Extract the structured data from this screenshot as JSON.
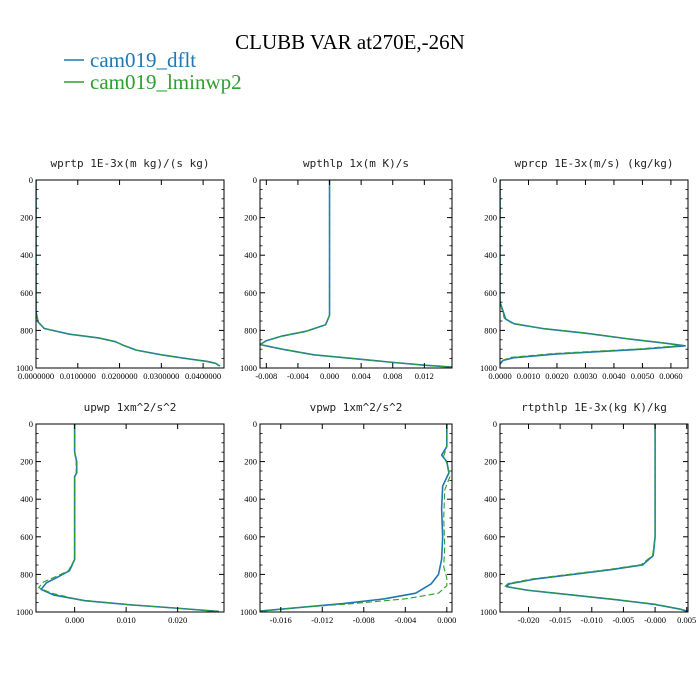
{
  "figure": {
    "title": "CLUBB VAR at270E,-26N",
    "colors": {
      "dflt": "#1f77b4",
      "lminwp2": "#2ca02c"
    }
  },
  "legend": {
    "items": [
      {
        "label": "cam019_dflt",
        "color": "#1f77b4",
        "style": "solid"
      },
      {
        "label": "cam019_lminwp2",
        "color": "#2ca02c",
        "style": "dashed"
      }
    ]
  },
  "chart_data": [
    {
      "type": "line",
      "title": "wprtp  1E-3x(m kg)/(s kg)",
      "xlim": [
        0,
        0.045
      ],
      "ylim": [
        0,
        1000
      ],
      "y_inverted": true,
      "xticks": [
        0,
        0.01,
        0.02,
        0.03,
        0.04
      ],
      "xtick_labels": [
        "0.0000000",
        "0.0100000",
        "0.0200000",
        "0.0300000",
        "0.0400000"
      ],
      "yticks": [
        0,
        200,
        400,
        600,
        800,
        1000
      ],
      "ytick_labels": [
        "0",
        "200",
        "400",
        "600",
        "800",
        "1000"
      ],
      "series": [
        {
          "name": "cam019_dflt",
          "points": [
            [
              0,
              0
            ],
            [
              0,
              500
            ],
            [
              0,
              700
            ],
            [
              0.0005,
              755
            ],
            [
              0.002,
              790
            ],
            [
              0.008,
              820
            ],
            [
              0.015,
              840
            ],
            [
              0.019,
              860
            ],
            [
              0.021,
              880
            ],
            [
              0.024,
              905
            ],
            [
              0.03,
              930
            ],
            [
              0.036,
              950
            ],
            [
              0.041,
              965
            ],
            [
              0.043,
              975
            ],
            [
              0.044,
              990
            ]
          ]
        },
        {
          "name": "cam019_lminwp2",
          "points": [
            [
              0,
              0
            ],
            [
              0,
              500
            ],
            [
              0,
              700
            ],
            [
              0.0005,
              755
            ],
            [
              0.002,
              790
            ],
            [
              0.008,
              820
            ],
            [
              0.015,
              840
            ],
            [
              0.019,
              860
            ],
            [
              0.021,
              880
            ],
            [
              0.024,
              905
            ],
            [
              0.03,
              930
            ],
            [
              0.036,
              950
            ],
            [
              0.041,
              965
            ],
            [
              0.043,
              975
            ],
            [
              0.044,
              990
            ]
          ]
        }
      ]
    },
    {
      "type": "line",
      "title": "wpthlp  1x(m K)/s",
      "xlim": [
        -0.0088,
        0.0155
      ],
      "ylim": [
        0,
        1000
      ],
      "y_inverted": true,
      "xticks": [
        -0.008,
        -0.004,
        0,
        0.004,
        0.008,
        0.012
      ],
      "xtick_labels": [
        "-0.008",
        "-0.004",
        "0.000",
        "0.004",
        "0.008",
        "0.012"
      ],
      "yticks": [
        0,
        200,
        400,
        600,
        800,
        1000
      ],
      "ytick_labels": [
        "0",
        "200",
        "400",
        "600",
        "800",
        "1000"
      ],
      "series": [
        {
          "name": "cam019_dflt",
          "points": [
            [
              0,
              0
            ],
            [
              0,
              300
            ],
            [
              0,
              600
            ],
            [
              0,
              720
            ],
            [
              -0.0005,
              770
            ],
            [
              -0.003,
              805
            ],
            [
              -0.006,
              830
            ],
            [
              -0.008,
              855
            ],
            [
              -0.0088,
              875
            ],
            [
              -0.006,
              900
            ],
            [
              -0.002,
              930
            ],
            [
              0.003,
              950
            ],
            [
              0.008,
              970
            ],
            [
              0.012,
              985
            ],
            [
              0.0155,
              995
            ]
          ]
        },
        {
          "name": "cam019_lminwp2",
          "points": [
            [
              0,
              0
            ],
            [
              0,
              300
            ],
            [
              0,
              600
            ],
            [
              0,
              720
            ],
            [
              -0.0005,
              770
            ],
            [
              -0.003,
              805
            ],
            [
              -0.006,
              830
            ],
            [
              -0.008,
              855
            ],
            [
              -0.0088,
              875
            ],
            [
              -0.006,
              900
            ],
            [
              -0.002,
              930
            ],
            [
              0.003,
              950
            ],
            [
              0.008,
              970
            ],
            [
              0.012,
              985
            ],
            [
              0.0155,
              995
            ]
          ]
        }
      ]
    },
    {
      "type": "line",
      "title": "wprcp  1E-3x(m/s) (kg/kg)",
      "xlim": [
        0,
        0.0066
      ],
      "ylim": [
        0,
        1000
      ],
      "y_inverted": true,
      "xticks": [
        0,
        0.001,
        0.002,
        0.003,
        0.004,
        0.005,
        0.006
      ],
      "xtick_labels": [
        "0.0000",
        "0.0010",
        "0.0020",
        "0.0030",
        "0.0040",
        "0.0050",
        "0.0060"
      ],
      "yticks": [
        0,
        200,
        400,
        600,
        800,
        1000
      ],
      "ytick_labels": [
        "0",
        "200",
        "400",
        "600",
        "800",
        "1000"
      ],
      "series": [
        {
          "name": "cam019_dflt",
          "points": [
            [
              0,
              0
            ],
            [
              0,
              500
            ],
            [
              0,
              650
            ],
            [
              0.0002,
              740
            ],
            [
              0.0005,
              765
            ],
            [
              0.0015,
              790
            ],
            [
              0.003,
              815
            ],
            [
              0.0045,
              845
            ],
            [
              0.0058,
              868
            ],
            [
              0.0065,
              882
            ],
            [
              0.005,
              900
            ],
            [
              0.002,
              925
            ],
            [
              0.0005,
              945
            ],
            [
              0.0001,
              960
            ],
            [
              0,
              980
            ]
          ]
        },
        {
          "name": "cam019_lminwp2",
          "points": [
            [
              0,
              0
            ],
            [
              0,
              500
            ],
            [
              0,
              650
            ],
            [
              0.00015,
              735
            ],
            [
              0.0004,
              760
            ],
            [
              0.0014,
              788
            ],
            [
              0.0029,
              812
            ],
            [
              0.0044,
              842
            ],
            [
              0.0057,
              866
            ],
            [
              0.0064,
              880
            ],
            [
              0.0049,
              898
            ],
            [
              0.0019,
              923
            ],
            [
              0.0004,
              943
            ],
            [
              0.0001,
              958
            ],
            [
              0,
              980
            ]
          ]
        }
      ]
    },
    {
      "type": "line",
      "title": "upwp  1xm^2/s^2",
      "xlim": [
        -0.0075,
        0.029
      ],
      "ylim": [
        0,
        1000
      ],
      "y_inverted": true,
      "xticks": [
        0,
        0.01,
        0.02
      ],
      "xtick_labels": [
        "0.000",
        "0.010",
        "0.020"
      ],
      "yticks": [
        0,
        200,
        400,
        600,
        800,
        1000
      ],
      "ytick_labels": [
        "0",
        "200",
        "400",
        "600",
        "800",
        "1000"
      ],
      "series": [
        {
          "name": "cam019_dflt",
          "points": [
            [
              0,
              0
            ],
            [
              0,
              150
            ],
            [
              0.0004,
              200
            ],
            [
              0.0004,
              260
            ],
            [
              0,
              280
            ],
            [
              0,
              600
            ],
            [
              0,
              720
            ],
            [
              -0.001,
              780
            ],
            [
              -0.003,
              810
            ],
            [
              -0.0055,
              845
            ],
            [
              -0.0065,
              880
            ],
            [
              -0.004,
              910
            ],
            [
              0.002,
              940
            ],
            [
              0.01,
              960
            ],
            [
              0.02,
              980
            ],
            [
              0.028,
              997
            ]
          ]
        },
        {
          "name": "cam019_lminwp2",
          "points": [
            [
              0,
              0
            ],
            [
              0,
              150
            ],
            [
              0.0003,
              200
            ],
            [
              0.0003,
              260
            ],
            [
              0,
              280
            ],
            [
              0,
              600
            ],
            [
              0,
              720
            ],
            [
              -0.0012,
              780
            ],
            [
              -0.0035,
              810
            ],
            [
              -0.006,
              840
            ],
            [
              -0.007,
              870
            ],
            [
              -0.0045,
              900
            ],
            [
              0.001,
              935
            ],
            [
              0.009,
              958
            ],
            [
              0.019,
              978
            ],
            [
              0.028,
              997
            ]
          ]
        }
      ]
    },
    {
      "type": "line",
      "title": "vpwp  1xm^2/s^2",
      "xlim": [
        -0.018,
        0.0005
      ],
      "ylim": [
        0,
        1000
      ],
      "y_inverted": true,
      "xticks": [
        -0.016,
        -0.012,
        -0.008,
        -0.004,
        0
      ],
      "xtick_labels": [
        "-0.016",
        "-0.012",
        "-0.008",
        "-0.004",
        "0.000"
      ],
      "yticks": [
        0,
        200,
        400,
        600,
        800,
        1000
      ],
      "ytick_labels": [
        "0",
        "200",
        "400",
        "600",
        "800",
        "1000"
      ],
      "series": [
        {
          "name": "cam019_dflt",
          "points": [
            [
              0,
              0
            ],
            [
              0,
              120
            ],
            [
              -0.0005,
              165
            ],
            [
              0,
              200
            ],
            [
              0.0002,
              260
            ],
            [
              -0.0004,
              330
            ],
            [
              -0.0005,
              450
            ],
            [
              -0.0004,
              600
            ],
            [
              -0.0005,
              720
            ],
            [
              -0.0008,
              800
            ],
            [
              -0.0015,
              850
            ],
            [
              -0.003,
              900
            ],
            [
              -0.006,
              930
            ],
            [
              -0.01,
              955
            ],
            [
              -0.014,
              975
            ],
            [
              -0.018,
              995
            ]
          ]
        },
        {
          "name": "cam019_lminwp2",
          "points": [
            [
              0,
              0
            ],
            [
              0,
              120
            ],
            [
              -0.0003,
              170
            ],
            [
              0,
              210
            ],
            [
              0.0003,
              280
            ],
            [
              -0.0002,
              350
            ],
            [
              -0.0003,
              500
            ],
            [
              -0.0002,
              650
            ],
            [
              -0.0003,
              760
            ],
            [
              0,
              820
            ],
            [
              0,
              860
            ],
            [
              -0.0008,
              900
            ],
            [
              -0.004,
              930
            ],
            [
              -0.009,
              955
            ],
            [
              -0.014,
              975
            ],
            [
              -0.018,
              995
            ]
          ]
        }
      ]
    },
    {
      "type": "line",
      "title": "rtpthlp  1E-3x(kg K)/kg",
      "xlim": [
        -0.0245,
        0.0052
      ],
      "ylim": [
        0,
        1000
      ],
      "y_inverted": true,
      "xticks": [
        -0.02,
        -0.015,
        -0.01,
        -0.005,
        0,
        0.005
      ],
      "xtick_labels": [
        "-0.020",
        "-0.015",
        "-0.010",
        "-0.005",
        "-0.000",
        "0.005"
      ],
      "yticks": [
        0,
        200,
        400,
        600,
        800,
        1000
      ],
      "ytick_labels": [
        "0",
        "200",
        "400",
        "600",
        "800",
        "1000"
      ],
      "series": [
        {
          "name": "cam019_dflt",
          "points": [
            [
              0,
              0
            ],
            [
              0,
              400
            ],
            [
              0,
              600
            ],
            [
              -0.0003,
              700
            ],
            [
              -0.002,
              750
            ],
            [
              -0.007,
              775
            ],
            [
              -0.013,
              800
            ],
            [
              -0.019,
              825
            ],
            [
              -0.023,
              850
            ],
            [
              -0.0235,
              865
            ],
            [
              -0.02,
              885
            ],
            [
              -0.013,
              910
            ],
            [
              -0.006,
              935
            ],
            [
              0,
              960
            ],
            [
              0.004,
              985
            ],
            [
              0.0052,
              998
            ]
          ]
        },
        {
          "name": "cam019_lminwp2",
          "points": [
            [
              0,
              0
            ],
            [
              0,
              400
            ],
            [
              0,
              600
            ],
            [
              -0.0004,
              700
            ],
            [
              -0.0022,
              748
            ],
            [
              -0.0072,
              773
            ],
            [
              -0.0132,
              798
            ],
            [
              -0.0192,
              823
            ],
            [
              -0.0232,
              848
            ],
            [
              -0.0237,
              863
            ],
            [
              -0.0202,
              883
            ],
            [
              -0.0132,
              908
            ],
            [
              -0.0062,
              933
            ],
            [
              0,
              958
            ],
            [
              0.004,
              984
            ],
            [
              0.0052,
              998
            ]
          ]
        }
      ]
    }
  ]
}
